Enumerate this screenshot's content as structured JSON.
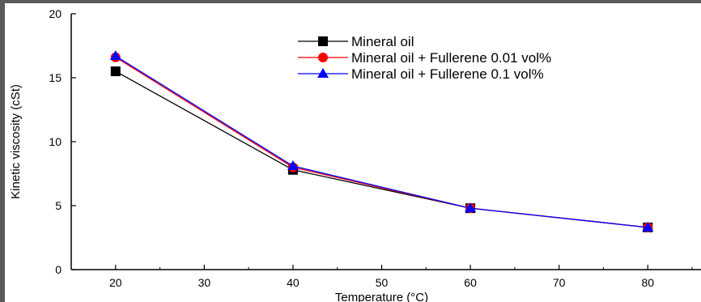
{
  "chart_data": {
    "type": "line",
    "title": "",
    "xlabel": "Temperature (°C)",
    "ylabel": "Kinetic viscosity (cSt)",
    "xlim": [
      15,
      86
    ],
    "ylim": [
      0,
      20
    ],
    "xticks": [
      20,
      30,
      40,
      50,
      60,
      70,
      80
    ],
    "yticks": [
      0,
      5,
      10,
      15,
      20
    ],
    "x": [
      20,
      40,
      60,
      80
    ],
    "legend_position": "top-right",
    "grid": false,
    "series": [
      {
        "name": "Mineral oil",
        "values": [
          15.5,
          7.8,
          4.8,
          3.3
        ],
        "color": "#000000",
        "marker": "square"
      },
      {
        "name": "Mineral oil + Fullerene 0.01 vol%",
        "values": [
          16.6,
          8.0,
          4.8,
          3.3
        ],
        "color": "#ff0000",
        "marker": "circle"
      },
      {
        "name": "Mineral oil + Fullerene 0.1 vol%",
        "values": [
          16.7,
          8.1,
          4.8,
          3.3
        ],
        "color": "#0000ff",
        "marker": "triangle"
      }
    ]
  }
}
